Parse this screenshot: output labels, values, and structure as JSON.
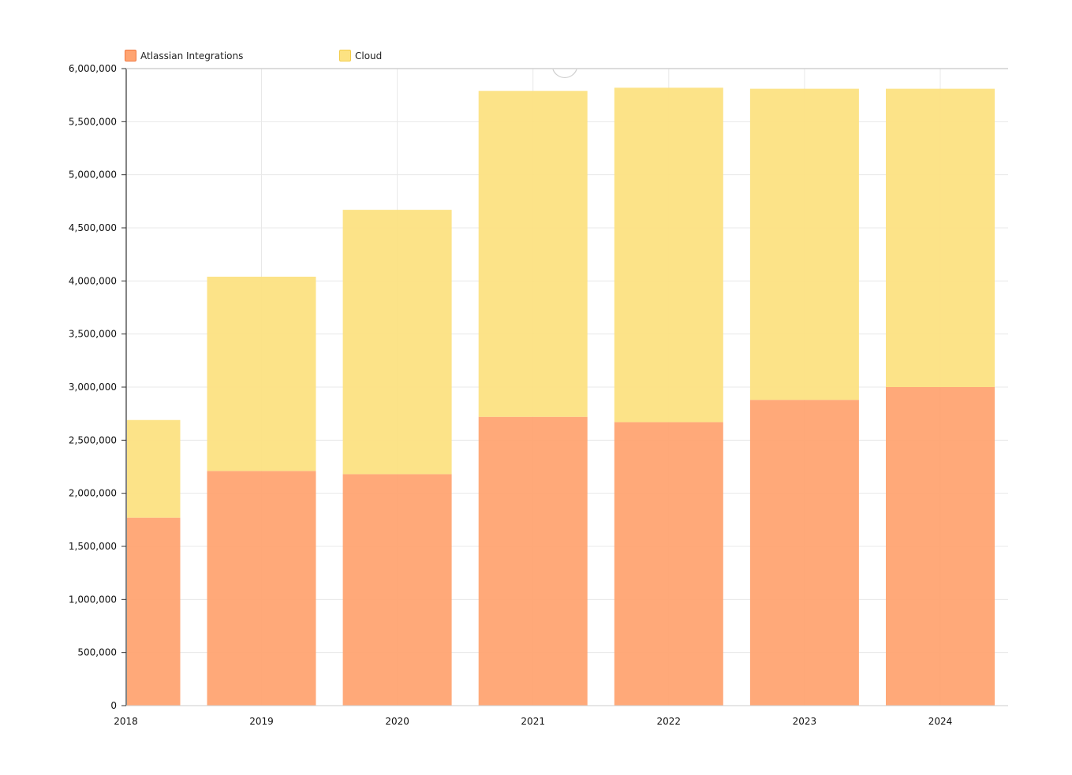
{
  "colors": {
    "atlassian_fill": "#ffa472",
    "atlassian_border": "#f0773f",
    "cloud_fill": "#fce282",
    "cloud_border": "#f3cc4a",
    "grid": "#e8e8e8",
    "axis": "#333333"
  },
  "legend": {
    "items": [
      {
        "label": "Atlassian Integrations",
        "color": "#ffa472",
        "border": "#f0773f"
      },
      {
        "label": "Cloud",
        "color": "#fce282",
        "border": "#f3cc4a"
      }
    ]
  },
  "chart_data": {
    "type": "bar",
    "stacked": true,
    "title": "",
    "xlabel": "",
    "ylabel": "",
    "categories": [
      "2018",
      "2019",
      "2020",
      "2021",
      "2022",
      "2023",
      "2024"
    ],
    "series": [
      {
        "name": "Atlassian Integrations",
        "values": [
          1770000,
          2210000,
          2180000,
          2720000,
          2670000,
          2880000,
          3000000
        ]
      },
      {
        "name": "Cloud",
        "values": [
          920000,
          1830000,
          2490000,
          3070000,
          3150000,
          2930000,
          2810000
        ]
      }
    ],
    "ylim": [
      0,
      6000000
    ],
    "yticks": [
      "0",
      "500,000",
      "1,000,000",
      "1,500,000",
      "2,000,000",
      "2,500,000",
      "3,000,000",
      "3,500,000",
      "4,000,000",
      "4,500,000",
      "5,000,000",
      "5,500,000",
      "6,000,000"
    ],
    "grid": true,
    "legend_position": "top-left"
  }
}
